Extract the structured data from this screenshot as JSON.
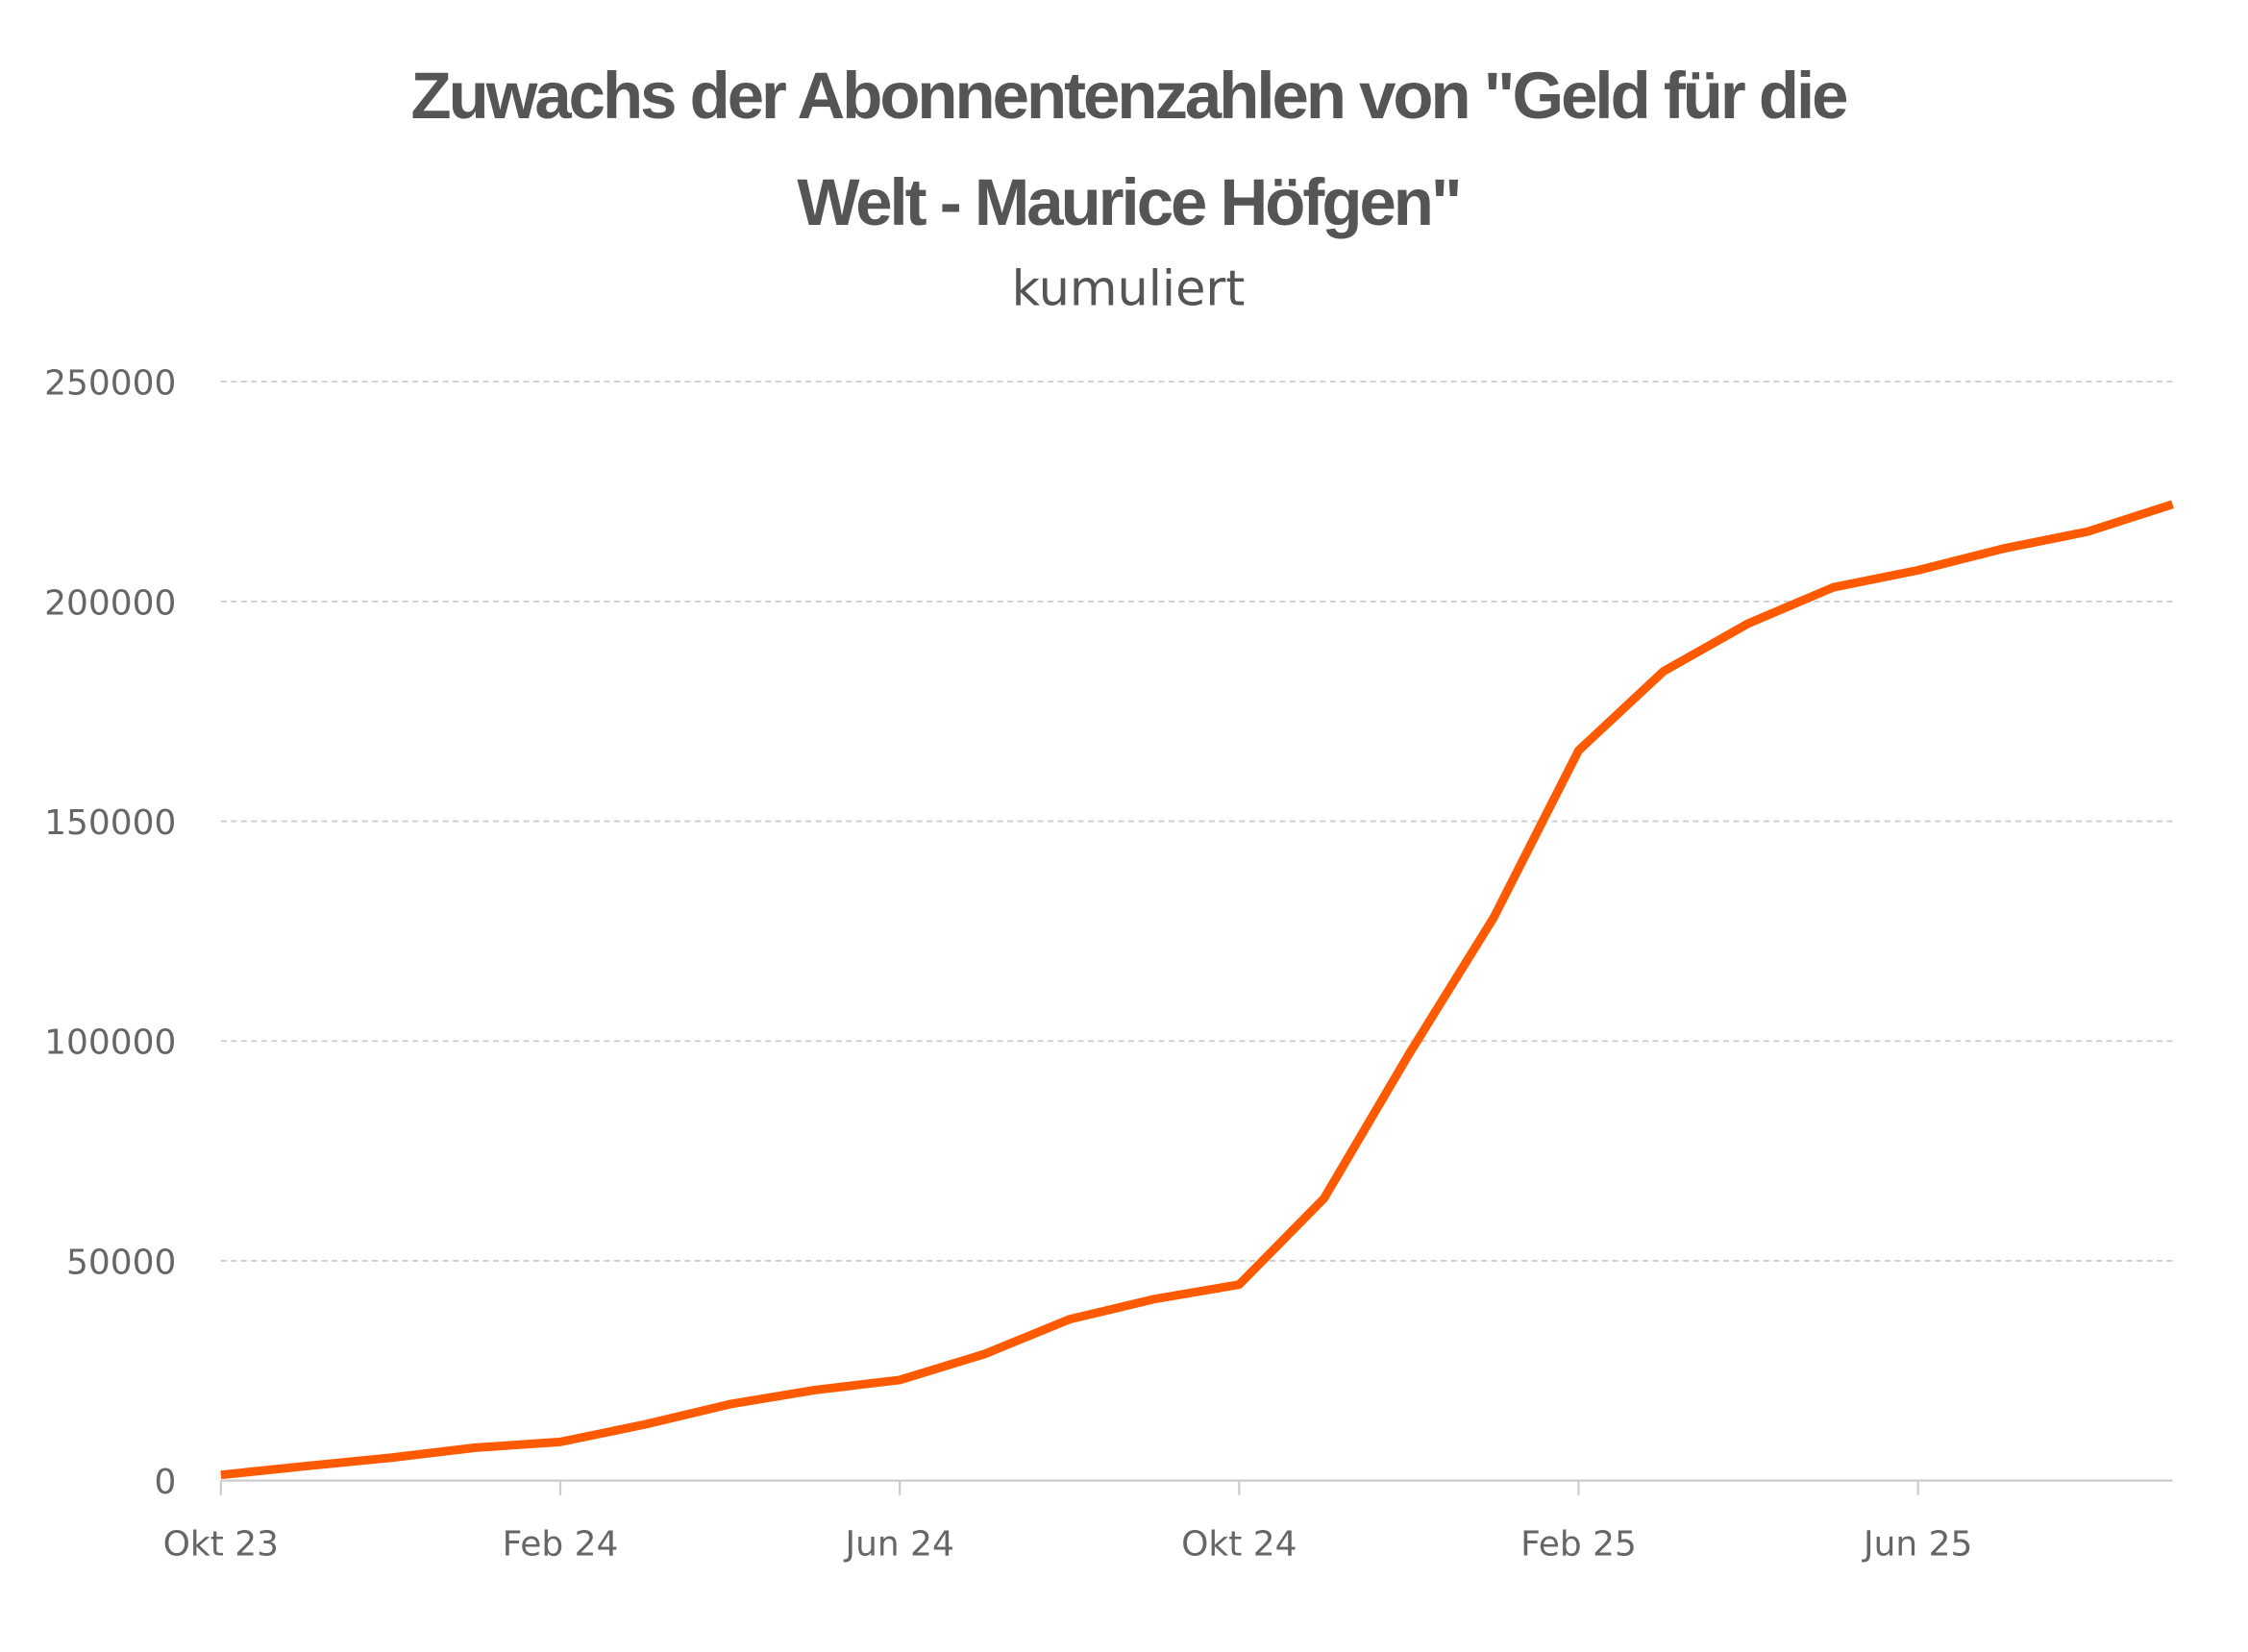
{
  "chart_data": {
    "type": "line",
    "title_lines": [
      "Zuwachs der Abonnentenzahlen von \"Geld für die",
      "Welt - Maurice Höfgen\""
    ],
    "subtitle": "kumuliert",
    "xlabel": "",
    "ylabel": "",
    "ylim": [
      0,
      250000
    ],
    "yticks": [
      "0",
      "50000",
      "100000",
      "150000",
      "200000",
      "250000"
    ],
    "xtick_labels": [
      "Okt 23",
      "Feb 24",
      "Jun 24",
      "Okt 24",
      "Feb 25",
      "Jun 25"
    ],
    "xtick_indices": [
      0,
      4,
      8,
      12,
      16,
      20
    ],
    "grid": "horizontal dashed",
    "series": [
      {
        "name": "Abonnenten",
        "color": "#FF5A00",
        "x": [
          "Okt 23",
          "Nov 23",
          "Dez 23",
          "Jan 24",
          "Feb 24",
          "Mär 24",
          "Apr 24",
          "Mai 24",
          "Jun 24",
          "Jul 24",
          "Aug 24",
          "Sep 24",
          "Okt 24",
          "Nov 24",
          "Dez 24",
          "Jan 25",
          "Feb 25",
          "Mär 25",
          "Apr 25",
          "Mai 25",
          "Jun 25",
          "Jul 25",
          "Aug 25",
          "Sep 25"
        ],
        "values": [
          1300,
          3300,
          5200,
          7500,
          8800,
          12800,
          17400,
          20600,
          22900,
          28800,
          36700,
          41300,
          44600,
          64200,
          97000,
          128100,
          166100,
          184100,
          195000,
          203200,
          207100,
          212000,
          215900,
          222100
        ]
      }
    ]
  }
}
